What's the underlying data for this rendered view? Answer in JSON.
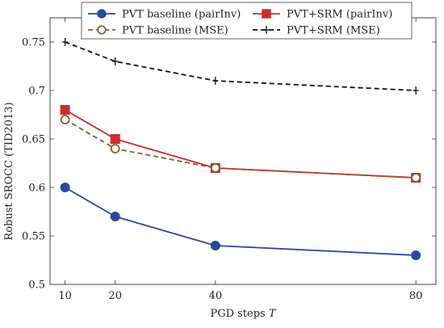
{
  "chart_data": {
    "type": "line",
    "title": "",
    "xlabel": "PGD steps T",
    "ylabel": "Robust SROCC (TID2013)",
    "x": [
      10,
      20,
      40,
      80
    ],
    "xlim": [
      7,
      84
    ],
    "ylim": [
      0.5,
      0.775
    ],
    "xticks": [
      10,
      20,
      40,
      80
    ],
    "xtick_labels": [
      "10",
      "20",
      "40",
      "80"
    ],
    "yticks": [
      0.5,
      0.55,
      0.6,
      0.65,
      0.7,
      0.75
    ],
    "ytick_labels": [
      "0.5",
      "0.55",
      "0.6",
      "0.65",
      "0.7",
      "0.75"
    ],
    "grid": false,
    "legend_position": "top",
    "series": [
      {
        "name": "PVT baseline (pairInv)",
        "values": [
          0.6,
          0.57,
          0.54,
          0.53
        ],
        "color": "#2a48a0",
        "marker": "circle-filled",
        "line_style": "solid"
      },
      {
        "name": "PVT+SRM (pairInv)",
        "values": [
          0.68,
          0.65,
          0.62,
          0.61
        ],
        "color": "#cf2b2b",
        "marker": "square-filled",
        "line_style": "solid"
      },
      {
        "name": "PVT baseline (MSE)",
        "values": [
          0.67,
          0.64,
          0.62,
          0.61
        ],
        "color": "#8b5a2b",
        "marker": "circle-open",
        "line_style": "dashed"
      },
      {
        "name": "PVT+SRM (MSE)",
        "values": [
          0.75,
          0.73,
          0.71,
          0.7
        ],
        "color": "#111111",
        "marker": "plus",
        "line_style": "dashed"
      }
    ]
  }
}
